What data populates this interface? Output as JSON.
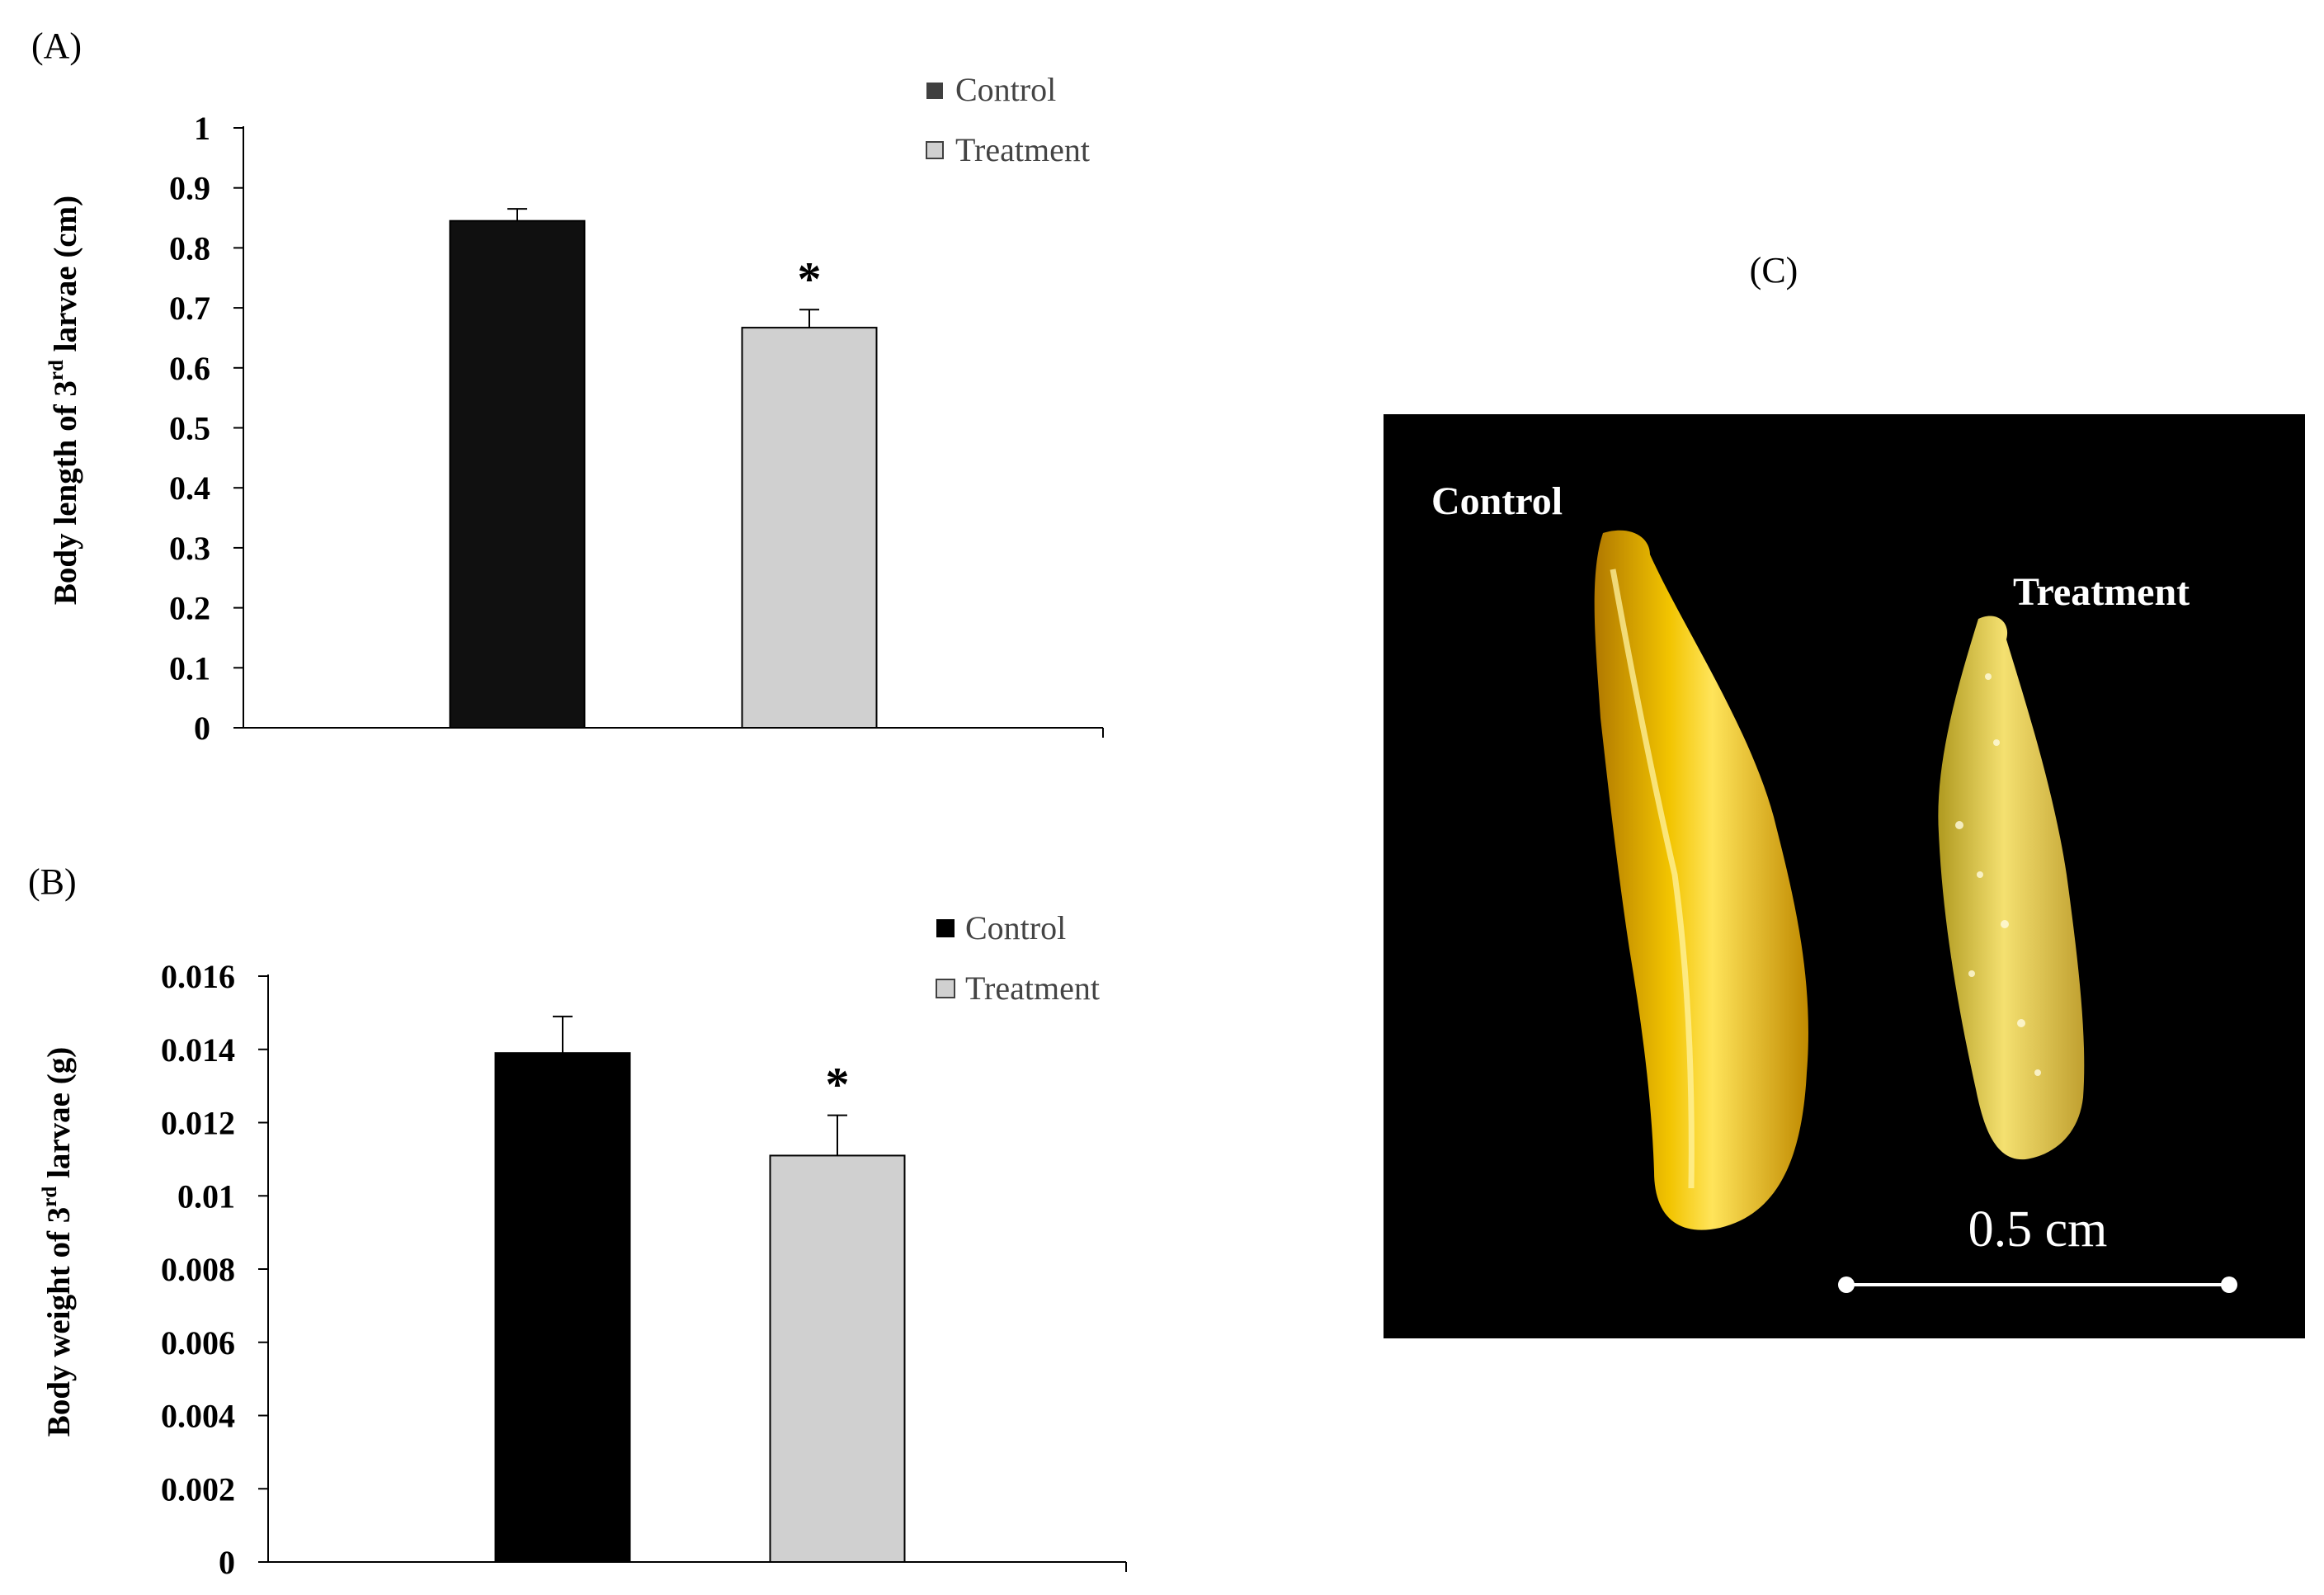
{
  "panels": {
    "a_label": "(A)",
    "b_label": "(B)",
    "c_label": "(C)"
  },
  "chart_data": [
    {
      "type": "bar",
      "panel": "A",
      "categories": [
        "Control",
        "Treatment"
      ],
      "values": [
        0.845,
        0.667
      ],
      "errors": [
        0.02,
        0.03
      ],
      "significance": [
        "",
        "*"
      ],
      "ylabel_pre": "Body length of 3",
      "ylabel_sup": "rd",
      "ylabel_post": " larvae  (cm)",
      "ylim": [
        0,
        1
      ],
      "yticks": [
        "0",
        "0.1",
        "0.2",
        "0.3",
        "0.4",
        "0.5",
        "0.6",
        "0.7",
        "0.8",
        "0.9",
        "1"
      ],
      "legend": [
        "Control",
        "Treatment"
      ],
      "legend_position": "top-right",
      "colors": [
        "#101010",
        "#d0d0d0"
      ],
      "grid": false
    },
    {
      "type": "bar",
      "panel": "B",
      "categories": [
        "Control",
        "Treatment"
      ],
      "values": [
        0.0139,
        0.0111
      ],
      "errors": [
        0.001,
        0.0011
      ],
      "significance": [
        "",
        "*"
      ],
      "ylabel_pre": "Body weight of 3",
      "ylabel_sup": "rd",
      "ylabel_post": " larvae  (g)",
      "ylim": [
        0,
        0.016
      ],
      "yticks": [
        "0",
        "0.002",
        "0.004",
        "0.006",
        "0.008",
        "0.01",
        "0.012",
        "0.014",
        "0.016"
      ],
      "legend": [
        "Control",
        "Treatment"
      ],
      "legend_position": "top-right",
      "colors": [
        "#000000",
        "#d0d0d0"
      ],
      "grid": false
    }
  ],
  "photo": {
    "control_label": "Control",
    "treatment_label": "Treatment",
    "scale_label": "0.5 cm"
  }
}
